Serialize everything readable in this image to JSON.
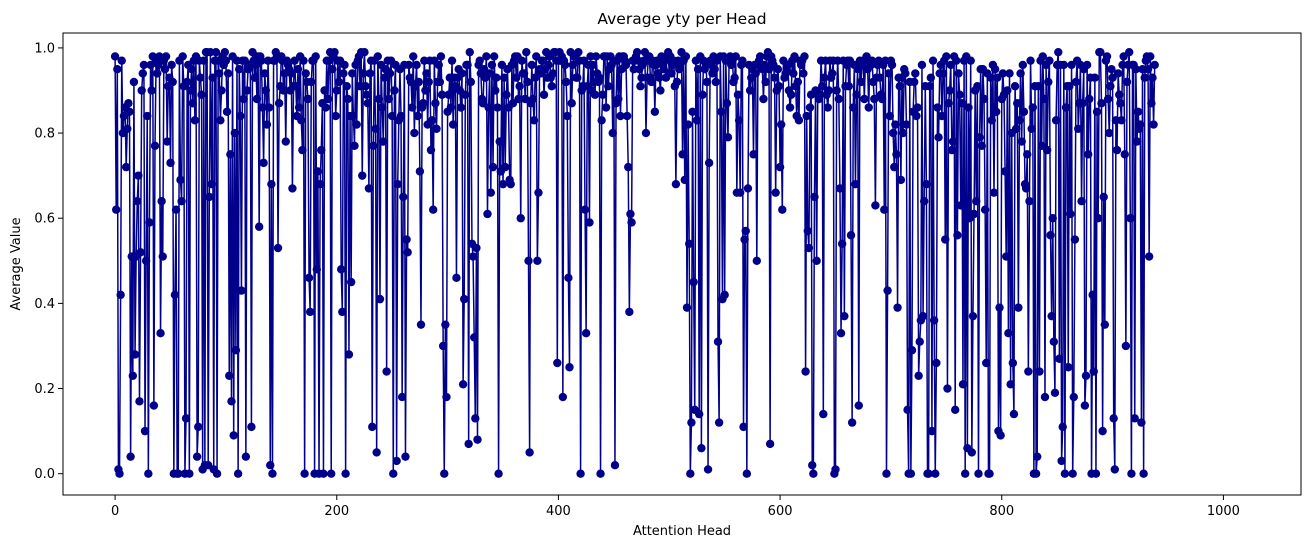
{
  "chart_data": {
    "type": "line",
    "title": "Average yty per Head",
    "xlabel": "Attention Head",
    "ylabel": "Average Value",
    "xlim": [
      -47,
      1070
    ],
    "ylim": [
      -0.05,
      1.035
    ],
    "x_ticks": [
      0,
      200,
      400,
      600,
      800,
      1000
    ],
    "y_ticks": [
      0.0,
      0.2,
      0.4,
      0.6,
      0.8,
      1.0
    ],
    "x_tick_labels": [
      "0",
      "200",
      "400",
      "600",
      "800",
      "1000"
    ],
    "y_tick_labels": [
      "0.0",
      "0.2",
      "0.4",
      "0.6",
      "0.8",
      "1.0"
    ],
    "grid": false,
    "series": [
      {
        "color": "#00008b",
        "marker": "circle",
        "x_start": 0,
        "x_step": 1,
        "values": [
          0.98,
          0.62,
          0.95,
          0.01,
          0.0,
          0.42,
          0.97,
          0.8,
          0.84,
          0.86,
          0.72,
          0.81,
          0.87,
          0.85,
          0.04,
          0.51,
          0.23,
          0.92,
          0.28,
          0.51,
          0.64,
          0.7,
          0.17,
          0.52,
          0.9,
          0.94,
          0.96,
          0.1,
          0.5,
          0.84,
          0.0,
          0.59,
          0.96,
          0.9,
          0.98,
          0.16,
          0.77,
          0.97,
          0.94,
          0.96,
          0.98,
          0.33,
          0.64,
          0.51,
          0.97,
          0.95,
          0.98,
          0.78,
          0.91,
          0.93,
          0.73,
          0.96,
          0.92,
          0.0,
          0.42,
          0.62,
          0.0,
          0.0,
          0.97,
          0.69,
          0.64,
          0.98,
          0.91,
          0.0,
          0.13,
          0.92,
          0.96,
          0.0,
          0.9,
          0.95,
          0.87,
          0.97,
          0.83,
          0.98,
          0.04,
          0.11,
          0.97,
          0.93,
          0.89,
          0.01,
          0.97,
          0.02,
          0.99,
          0.99,
          0.02,
          0.65,
          0.99,
          0.68,
          0.93,
          0.01,
          0.97,
          0.99,
          0.0,
          0.97,
          0.94,
          0.83,
          0.9,
          0.98,
          0.96,
          0.99,
          0.97,
          0.85,
          0.94,
          0.23,
          0.75,
          0.17,
          0.98,
          0.09,
          0.8,
          0.29,
          0.97,
          0.0,
          0.95,
          0.84,
          0.43,
          0.97,
          0.88,
          0.97,
          0.04,
          0.9,
          0.95,
          0.96,
          0.96,
          0.11,
          0.99,
          0.97,
          0.93,
          0.96,
          0.88,
          0.98,
          0.58,
          0.98,
          0.97,
          0.86,
          0.73,
          0.94,
          0.9,
          0.82,
          0.97,
          0.86,
          0.02,
          0.68,
          0.0,
          0.97,
          0.97,
          0.99,
          0.98,
          0.53,
          0.87,
          0.91,
          0.98,
          0.97,
          0.9,
          0.94,
          0.78,
          0.97,
          0.96,
          0.95,
          0.9,
          0.94,
          0.67,
          0.91,
          0.97,
          0.91,
          0.84,
          0.95,
          0.86,
          0.98,
          0.83,
          0.76,
          0.97,
          0.0,
          0.94,
          0.92,
          0.88,
          0.46,
          0.38,
          0.92,
          0.97,
          0.97,
          0.0,
          0.98,
          0.48,
          0.71,
          0.0,
          0.68,
          0.76,
          0.87,
          0.0,
          0.9,
          0.86,
          0.97,
          0.88,
          0.97,
          0.99,
          0.0,
          0.95,
          0.98,
          0.99,
          0.84,
          0.9,
          0.97,
          0.92,
          0.97,
          0.48,
          0.38,
          0.94,
          0.96,
          0.0,
          0.91,
          0.88,
          0.28,
          0.84,
          0.45,
          0.94,
          0.84,
          0.77,
          0.96,
          0.82,
          0.97,
          0.98,
          0.91,
          0.99,
          0.7,
          0.94,
          0.99,
          0.91,
          0.89,
          0.87,
          0.67,
          0.94,
          0.97,
          0.11,
          0.77,
          0.97,
          0.81,
          0.05,
          0.98,
          0.88,
          0.41,
          0.96,
          0.86,
          0.78,
          0.93,
          0.95,
          0.24,
          0.97,
          0.88,
          0.94,
          0.97,
          0.84,
          0.0,
          0.9,
          0.96,
          0.03,
          0.68,
          0.83,
          0.95,
          0.84,
          0.18,
          0.65,
          0.96,
          0.04,
          0.55,
          0.52,
          0.96,
          0.93,
          0.92,
          0.86,
          0.98,
          0.8,
          0.91,
          0.96,
          0.84,
          0.92,
          0.71,
          0.35,
          0.86,
          0.87,
          0.97,
          0.9,
          0.94,
          0.82,
          0.92,
          0.97,
          0.76,
          0.83,
          0.62,
          0.97,
          0.87,
          0.81,
          0.92,
          0.96,
          0.92,
          0.98,
          0.89,
          0.3,
          0.0,
          0.35,
          0.18,
          0.85,
          0.89,
          0.93,
          0.86,
          0.97,
          0.82,
          0.93,
          0.91,
          0.46,
          0.93,
          0.95,
          0.9,
          0.86,
          0.94,
          0.21,
          0.41,
          0.89,
          0.96,
          0.96,
          0.07,
          0.99,
          0.92,
          0.54,
          0.51,
          0.32,
          0.13,
          0.53,
          0.08,
          0.96,
          0.97,
          0.94,
          0.88,
          0.87,
          0.95,
          0.93,
          0.98,
          0.61,
          0.86,
          0.94,
          0.66,
          0.96,
          0.72,
          0.98,
          0.9,
          0.93,
          0.86,
          0.0,
          0.78,
          0.71,
          0.96,
          0.68,
          0.93,
          0.72,
          0.89,
          0.95,
          0.86,
          0.69,
          0.68,
          0.96,
          0.87,
          0.97,
          0.98,
          0.93,
          0.98,
          0.88,
          0.91,
          0.6,
          0.97,
          0.94,
          0.94,
          0.88,
          0.99,
          0.92,
          0.5,
          0.05,
          0.87,
          0.96,
          0.88,
          0.83,
          0.93,
          0.98,
          0.5,
          0.66,
          0.95,
          0.94,
          0.97,
          0.97,
          0.89,
          0.95,
          0.99,
          0.93,
          0.96,
          0.98,
          0.93,
          0.91,
          0.94,
          0.99,
          0.99,
          0.97,
          0.26,
          0.97,
          0.99,
          0.97,
          0.98,
          0.18,
          0.97,
          0.96,
          0.92,
          0.84,
          0.46,
          0.25,
          0.99,
          0.87,
          0.96,
          0.98,
          0.98,
          0.93,
          0.93,
          0.99,
          0.97,
          0.0,
          0.9,
          0.91,
          0.97,
          0.62,
          0.33,
          0.91,
          0.96,
          0.59,
          0.98,
          0.9,
          0.96,
          0.92,
          0.89,
          0.98,
          0.94,
          0.92,
          0.93,
          0.0,
          0.83,
          0.89,
          0.98,
          0.98,
          0.86,
          0.98,
          0.91,
          0.95,
          0.98,
          0.96,
          0.8,
          0.97,
          0.02,
          0.87,
          0.97,
          0.88,
          0.98,
          0.84,
          0.95,
          0.98,
          0.98,
          0.97,
          0.96,
          0.84,
          0.72,
          0.38,
          0.61,
          0.59,
          0.97,
          0.95,
          0.97,
          0.98,
          0.99,
          0.97,
          0.95,
          0.91,
          0.93,
          0.96,
          0.97,
          0.99,
          0.8,
          0.93,
          0.97,
          0.98,
          0.93,
          0.92,
          0.97,
          0.96,
          0.85,
          0.96,
          0.97,
          0.94,
          0.93,
          0.9,
          0.98,
          0.96,
          0.95,
          0.97,
          0.93,
          0.98,
          0.99,
          0.94,
          0.98,
          0.94,
          0.96,
          0.97,
          0.91,
          0.68,
          0.92,
          0.97,
          0.95,
          0.96,
          0.99,
          0.75,
          0.97,
          0.69,
          0.98,
          0.39,
          0.82,
          0.54,
          0.0,
          0.12,
          0.85,
          0.45,
          0.15,
          0.97,
          0.83,
          0.95,
          0.14,
          0.98,
          0.06,
          0.89,
          0.97,
          0.95,
          0.96,
          0.92,
          0.01,
          0.73,
          0.97,
          0.96,
          0.94,
          0.98,
          0.95,
          0.92,
          0.97,
          0.31,
          0.12,
          0.98,
          0.85,
          0.41,
          0.98,
          0.42,
          0.97,
          0.87,
          0.79,
          0.97,
          0.98,
          0.96,
          0.97,
          0.92,
          0.93,
          0.98,
          0.66,
          0.89,
          0.83,
          0.66,
          0.96,
          0.97,
          0.11,
          0.55,
          0.57,
          0.0,
          0.67,
          0.96,
          0.9,
          0.93,
          0.95,
          0.75,
          0.96,
          0.94,
          0.5,
          0.96,
          0.97,
          0.98,
          0.96,
          0.95,
          0.88,
          0.96,
          0.92,
          0.98,
          0.99,
          0.95,
          0.07,
          0.98,
          0.97,
          0.96,
          0.93,
          0.66,
          0.9,
          0.95,
          0.91,
          0.72,
          0.82,
          0.62,
          0.97,
          0.93,
          0.94,
          0.95,
          0.96,
          0.9,
          0.86,
          0.89,
          0.97,
          0.94,
          0.98,
          0.91,
          0.84,
          0.92,
          0.83,
          0.97,
          0.96,
          0.97,
          0.94,
          0.98,
          0.24,
          0.84,
          0.57,
          0.53,
          0.86,
          0.89,
          0.02,
          0.0,
          0.65,
          0.9,
          0.5,
          0.89,
          0.88,
          0.89,
          0.97,
          0.91,
          0.14,
          0.93,
          0.97,
          0.89,
          0.86,
          0.9,
          0.97,
          0.93,
          0.94,
          0.97,
          0.0,
          0.01,
          0.9,
          0.97,
          0.88,
          0.67,
          0.33,
          0.54,
          0.97,
          0.37,
          0.91,
          0.96,
          0.97,
          0.91,
          0.97,
          0.56,
          0.12,
          0.86,
          0.96,
          0.68,
          0.89,
          0.95,
          0.16,
          0.97,
          0.92,
          0.96,
          0.97,
          0.88,
          0.97,
          0.98,
          0.95,
          0.86,
          0.97,
          0.96,
          0.97,
          0.92,
          0.88,
          0.63,
          0.93,
          0.96,
          0.97,
          0.93,
          0.89,
          0.88,
          0.96,
          0.62,
          0.97,
          0.0,
          0.43,
          0.94,
          0.84,
          0.97,
          0.96,
          0.8,
          0.72,
          0.82,
          0.75,
          0.39,
          0.93,
          0.91,
          0.69,
          0.93,
          0.8,
          0.95,
          0.94,
          0.82,
          0.15,
          0.0,
          0.92,
          0.0,
          0.29,
          0.85,
          0.92,
          0.94,
          0.84,
          0.86,
          0.23,
          0.31,
          0.36,
          0.96,
          0.37,
          0.64,
          0.91,
          0.68,
          0.0,
          0.0,
          0.91,
          0.93,
          0.1,
          0.97,
          0.36,
          0.0,
          0.26,
          0.86,
          0.79,
          0.94,
          0.96,
          0.84,
          0.94,
          0.97,
          0.55,
          0.98,
          0.2,
          0.87,
          0.9,
          0.96,
          0.76,
          0.78,
          0.98,
          0.15,
          0.97,
          0.56,
          0.94,
          0.89,
          0.63,
          0.87,
          0.21,
          0.97,
          0.0,
          0.98,
          0.06,
          0.86,
          0.6,
          0.97,
          0.05,
          0.37,
          0.61,
          0.9,
          0.64,
          0.91,
          0.0,
          0.79,
          0.95,
          0.77,
          0.95,
          0.88,
          0.62,
          0.26,
          0.94,
          0.0,
          0.0,
          0.93,
          0.83,
          0.96,
          0.66,
          0.95,
          0.85,
          0.93,
          0.1,
          0.39,
          0.09,
          0.88,
          0.94,
          0.89,
          0.71,
          0.51,
          0.9,
          0.33,
          0.94,
          0.21,
          0.8,
          0.26,
          0.14,
          0.91,
          0.81,
          0.87,
          0.39,
          0.83,
          0.94,
          0.78,
          0.96,
          0.85,
          0.68,
          0.67,
          0.75,
          0.24,
          0.64,
          0.97,
          0.81,
          0.86,
          0.0,
          0.91,
          0.0,
          0.04,
          0.91,
          0.24,
          0.97,
          0.77,
          0.98,
          0.88,
          0.18,
          0.96,
          0.76,
          0.92,
          0.97,
          0.56,
          0.37,
          0.6,
          0.31,
          0.19,
          0.83,
          0.96,
          0.99,
          0.27,
          0.96,
          0.03,
          0.11,
          0.96,
          0.0,
          0.86,
          0.91,
          0.25,
          0.91,
          0.61,
          0.96,
          0.0,
          0.18,
          0.55,
          0.92,
          0.97,
          0.81,
          0.87,
          0.96,
          0.64,
          0.87,
          0.95,
          0.16,
          0.23,
          0.96,
          0.75,
          0.88,
          0.93,
          0.0,
          0.42,
          0.24,
          0.93,
          0.0,
          0.85,
          0.6,
          0.99,
          0.99,
          0.87,
          0.1,
          0.65,
          0.35,
          0.97,
          0.98,
          0.88,
          0.8,
          0.91,
          0.95,
          0.93,
          0.13,
          0.01,
          0.83,
          0.76,
          0.94,
          0.89,
          0.87,
          0.83,
          0.96,
          0.98,
          0.75,
          0.3,
          0.92,
          0.96,
          0.99,
          0.6,
          0.0,
          0.96,
          0.96,
          0.13,
          0.95,
          0.78,
          0.85,
          0.81,
          0.82,
          0.12,
          0.95,
          0.0,
          0.93,
          0.97,
          0.98,
          0.95,
          0.51,
          0.98,
          0.87,
          0.93,
          0.82,
          0.96
        ]
      }
    ]
  }
}
